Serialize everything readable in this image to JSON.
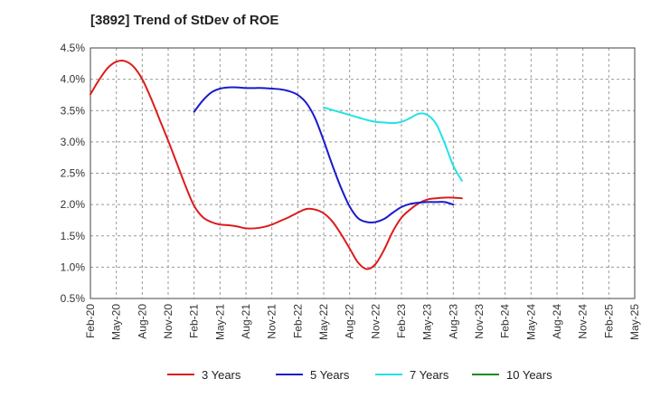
{
  "chart_data": {
    "type": "line",
    "title": "[3892]  Trend of StDev of ROE",
    "xlabel": "",
    "ylabel": "",
    "x": [
      "Feb-20",
      "May-20",
      "Aug-20",
      "Nov-20",
      "Feb-21",
      "May-21",
      "Aug-21",
      "Nov-21",
      "Feb-22",
      "May-22",
      "Aug-22",
      "Nov-22",
      "Feb-23",
      "May-23",
      "Aug-23",
      "Nov-23",
      "Feb-24",
      "May-24",
      "Aug-24",
      "Nov-24",
      "Feb-25",
      "May-25"
    ],
    "ylim": [
      0.5,
      4.5
    ],
    "yticks": [
      0.5,
      1.0,
      1.5,
      2.0,
      2.5,
      3.0,
      3.5,
      4.0,
      4.5
    ],
    "ytick_labels": [
      "0.5%",
      "1.0%",
      "1.5%",
      "2.0%",
      "2.5%",
      "3.0%",
      "3.5%",
      "4.0%",
      "4.5%"
    ],
    "grid": true,
    "legend_position": "bottom",
    "series": [
      {
        "name": "3 Years",
        "color": "#dd1c1c",
        "points": [
          [
            "Feb-20",
            3.76
          ],
          [
            "Mar-20",
            3.99
          ],
          [
            "Apr-20",
            4.18
          ],
          [
            "May-20",
            4.28
          ],
          [
            "Jun-20",
            4.29
          ],
          [
            "Jul-20",
            4.2
          ],
          [
            "Aug-20",
            4.0
          ],
          [
            "Sep-20",
            3.7
          ],
          [
            "Oct-20",
            3.36
          ],
          [
            "Nov-20",
            3.02
          ],
          [
            "Dec-20",
            2.66
          ],
          [
            "Jan-21",
            2.3
          ],
          [
            "Feb-21",
            1.98
          ],
          [
            "Mar-21",
            1.8
          ],
          [
            "Apr-21",
            1.72
          ],
          [
            "May-21",
            1.68
          ],
          [
            "Jun-21",
            1.67
          ],
          [
            "Jul-21",
            1.65
          ],
          [
            "Aug-21",
            1.62
          ],
          [
            "Sep-21",
            1.62
          ],
          [
            "Oct-21",
            1.64
          ],
          [
            "Nov-21",
            1.68
          ],
          [
            "Dec-21",
            1.74
          ],
          [
            "Jan-22",
            1.8
          ],
          [
            "Feb-22",
            1.87
          ],
          [
            "Mar-22",
            1.93
          ],
          [
            "Apr-22",
            1.92
          ],
          [
            "May-22",
            1.86
          ],
          [
            "Jun-22",
            1.73
          ],
          [
            "Jul-22",
            1.53
          ],
          [
            "Aug-22",
            1.3
          ],
          [
            "Sep-22",
            1.07
          ],
          [
            "Oct-22",
            0.97
          ],
          [
            "Nov-22",
            1.05
          ],
          [
            "Dec-22",
            1.28
          ],
          [
            "Jan-23",
            1.57
          ],
          [
            "Feb-23",
            1.79
          ],
          [
            "Mar-23",
            1.92
          ],
          [
            "Apr-23",
            2.02
          ],
          [
            "May-23",
            2.08
          ],
          [
            "Jun-23",
            2.1
          ],
          [
            "Jul-23",
            2.11
          ],
          [
            "Aug-23",
            2.11
          ],
          [
            "Sep-23",
            2.1
          ]
        ]
      },
      {
        "name": "5 Years",
        "color": "#1a1acc",
        "points": [
          [
            "Feb-21",
            3.48
          ],
          [
            "Mar-21",
            3.66
          ],
          [
            "Apr-21",
            3.79
          ],
          [
            "May-21",
            3.85
          ],
          [
            "Jun-21",
            3.87
          ],
          [
            "Jul-21",
            3.87
          ],
          [
            "Aug-21",
            3.86
          ],
          [
            "Sep-21",
            3.86
          ],
          [
            "Oct-21",
            3.86
          ],
          [
            "Nov-21",
            3.85
          ],
          [
            "Dec-21",
            3.84
          ],
          [
            "Jan-22",
            3.81
          ],
          [
            "Feb-22",
            3.75
          ],
          [
            "Mar-22",
            3.62
          ],
          [
            "Apr-22",
            3.38
          ],
          [
            "May-22",
            3.02
          ],
          [
            "Jun-22",
            2.63
          ],
          [
            "Jul-22",
            2.27
          ],
          [
            "Aug-22",
            1.97
          ],
          [
            "Sep-22",
            1.78
          ],
          [
            "Oct-22",
            1.72
          ],
          [
            "Nov-22",
            1.72
          ],
          [
            "Dec-22",
            1.77
          ],
          [
            "Jan-23",
            1.87
          ],
          [
            "Feb-23",
            1.96
          ],
          [
            "Mar-23",
            2.01
          ],
          [
            "Apr-23",
            2.03
          ],
          [
            "May-23",
            2.04
          ],
          [
            "Jun-23",
            2.04
          ],
          [
            "Jul-23",
            2.04
          ],
          [
            "Aug-23",
            2.0
          ]
        ]
      },
      {
        "name": "7 Years",
        "color": "#22e2e6",
        "points": [
          [
            "May-22",
            3.55
          ],
          [
            "Jun-22",
            3.51
          ],
          [
            "Jul-22",
            3.47
          ],
          [
            "Aug-22",
            3.43
          ],
          [
            "Sep-22",
            3.39
          ],
          [
            "Oct-22",
            3.35
          ],
          [
            "Nov-22",
            3.32
          ],
          [
            "Dec-22",
            3.31
          ],
          [
            "Jan-23",
            3.3
          ],
          [
            "Feb-23",
            3.32
          ],
          [
            "Mar-23",
            3.38
          ],
          [
            "Apr-23",
            3.45
          ],
          [
            "May-23",
            3.43
          ],
          [
            "Jun-23",
            3.29
          ],
          [
            "Jul-23",
            2.98
          ],
          [
            "Aug-23",
            2.62
          ],
          [
            "Sep-23",
            2.38
          ]
        ]
      },
      {
        "name": "10 Years",
        "color": "#1e8c1e",
        "points": []
      }
    ]
  }
}
